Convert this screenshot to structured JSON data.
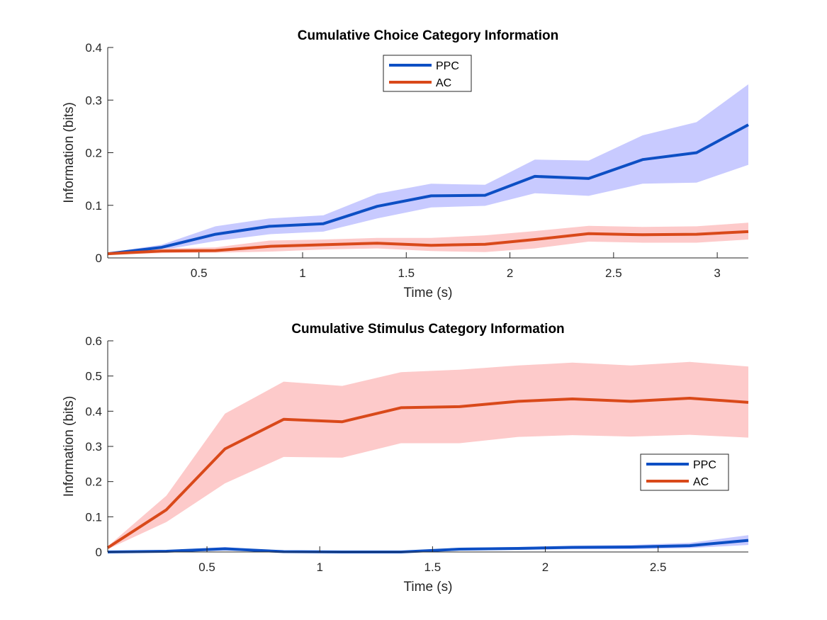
{
  "chart_data": [
    {
      "type": "line",
      "title": "Cumulative Choice Category Information",
      "xlabel": "Time (s)",
      "ylabel": "Information (bits)",
      "xlim": [
        0.06,
        3.15
      ],
      "ylim": [
        0,
        0.4
      ],
      "xticks": [
        0.5,
        1,
        1.5,
        2,
        2.5,
        3
      ],
      "yticks": [
        0,
        0.1,
        0.2,
        0.3,
        0.4
      ],
      "grid": false,
      "legend_position": "top-center",
      "x": [
        0.06,
        0.32,
        0.58,
        0.84,
        1.1,
        1.36,
        1.62,
        1.88,
        2.12,
        2.38,
        2.64,
        2.9,
        3.15
      ],
      "series": [
        {
          "name": "PPC",
          "color": "#0d4fc4",
          "band_color": "#c8caff",
          "values": [
            0.008,
            0.02,
            0.045,
            0.06,
            0.065,
            0.098,
            0.118,
            0.119,
            0.155,
            0.151,
            0.187,
            0.2,
            0.253
          ],
          "lower": [
            0.006,
            0.015,
            0.032,
            0.045,
            0.05,
            0.075,
            0.096,
            0.099,
            0.123,
            0.118,
            0.141,
            0.143,
            0.177
          ],
          "upper": [
            0.01,
            0.025,
            0.06,
            0.075,
            0.081,
            0.122,
            0.141,
            0.139,
            0.187,
            0.185,
            0.233,
            0.258,
            0.33
          ]
        },
        {
          "name": "AC",
          "color": "#d9491a",
          "band_color": "#fdcaca",
          "values": [
            0.008,
            0.013,
            0.014,
            0.022,
            0.025,
            0.028,
            0.024,
            0.026,
            0.035,
            0.046,
            0.044,
            0.045,
            0.05
          ],
          "lower": [
            0.006,
            0.009,
            0.01,
            0.012,
            0.016,
            0.018,
            0.013,
            0.011,
            0.018,
            0.031,
            0.029,
            0.029,
            0.035
          ],
          "upper": [
            0.01,
            0.018,
            0.02,
            0.033,
            0.035,
            0.038,
            0.038,
            0.043,
            0.051,
            0.061,
            0.059,
            0.06,
            0.067
          ]
        }
      ]
    },
    {
      "type": "line",
      "title": "Cumulative Stimulus Category Information",
      "xlabel": "Time (s)",
      "ylabel": "Information (bits)",
      "xlim": [
        0.06,
        2.9
      ],
      "ylim": [
        0,
        0.6
      ],
      "xticks": [
        0.5,
        1,
        1.5,
        2,
        2.5
      ],
      "yticks": [
        0,
        0.1,
        0.2,
        0.3,
        0.4,
        0.5,
        0.6
      ],
      "grid": false,
      "legend_position": "center-right",
      "x": [
        0.06,
        0.32,
        0.58,
        0.84,
        1.1,
        1.36,
        1.62,
        1.88,
        2.12,
        2.38,
        2.64,
        2.9
      ],
      "series": [
        {
          "name": "PPC",
          "color": "#0d4fc4",
          "band_color": "#c8caff",
          "values": [
            0.0,
            0.002,
            0.009,
            0.001,
            0.0,
            0.0,
            0.008,
            0.01,
            0.013,
            0.014,
            0.018,
            0.033
          ],
          "lower": [
            0.0,
            0.0,
            0.004,
            0.0,
            0.0,
            0.0,
            0.004,
            0.006,
            0.008,
            0.008,
            0.011,
            0.02
          ],
          "upper": [
            0.001,
            0.005,
            0.014,
            0.003,
            0.001,
            0.001,
            0.012,
            0.014,
            0.018,
            0.02,
            0.026,
            0.048
          ]
        },
        {
          "name": "AC",
          "color": "#d9491a",
          "band_color": "#fdcaca",
          "values": [
            0.012,
            0.12,
            0.293,
            0.377,
            0.37,
            0.41,
            0.413,
            0.428,
            0.435,
            0.428,
            0.437,
            0.425
          ],
          "lower": [
            0.008,
            0.085,
            0.195,
            0.27,
            0.268,
            0.309,
            0.309,
            0.327,
            0.332,
            0.328,
            0.333,
            0.325
          ],
          "upper": [
            0.016,
            0.16,
            0.393,
            0.484,
            0.472,
            0.511,
            0.518,
            0.53,
            0.538,
            0.53,
            0.54,
            0.527
          ]
        }
      ]
    }
  ]
}
